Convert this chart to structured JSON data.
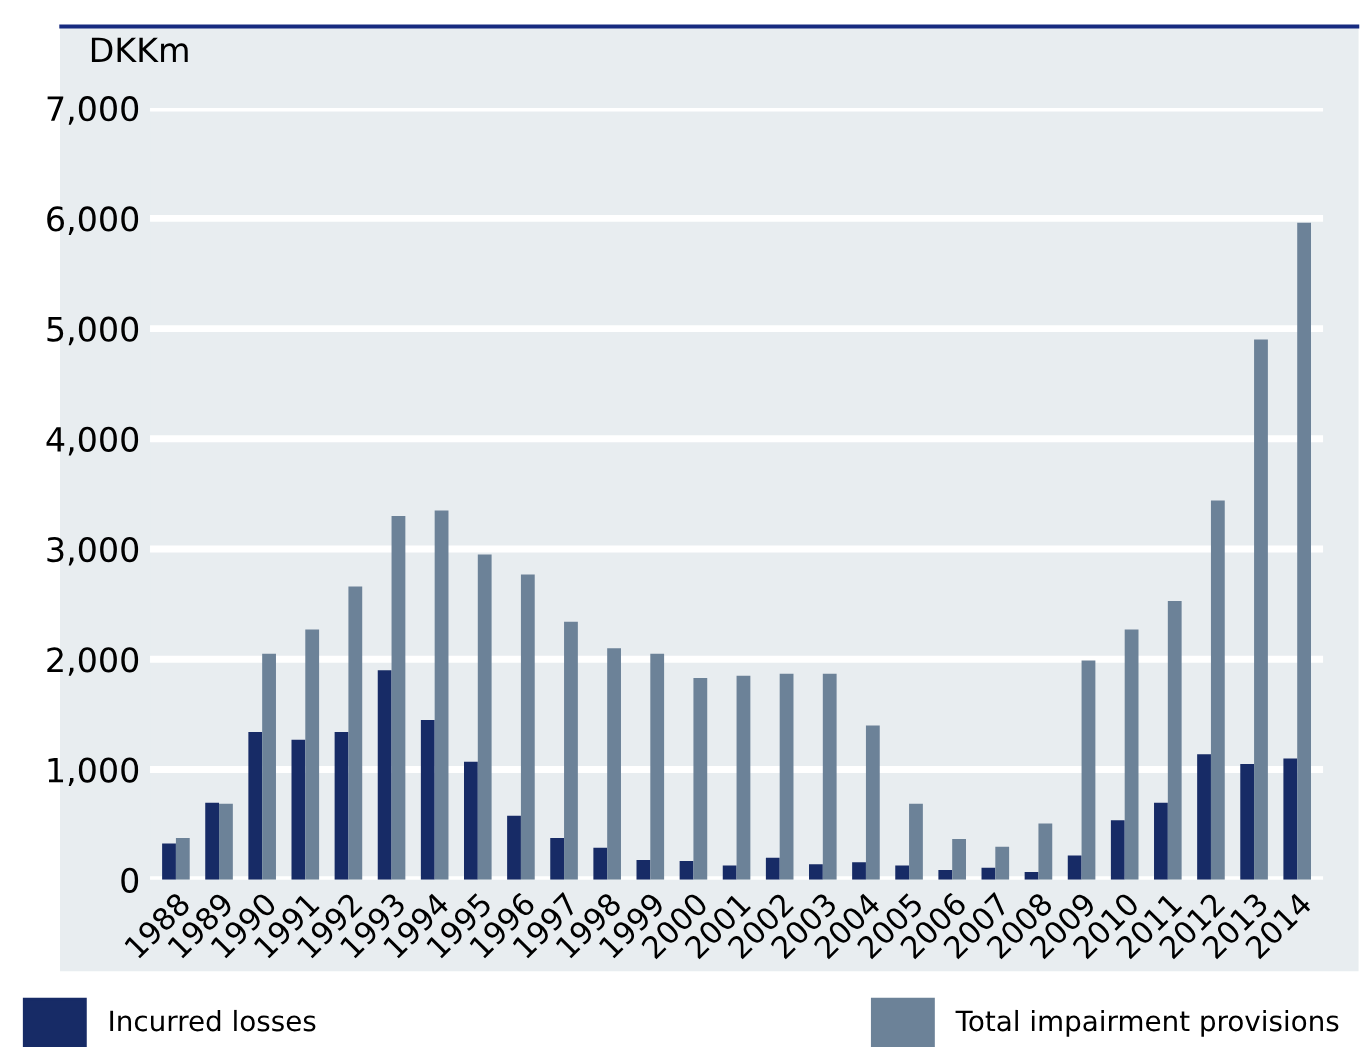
{
  "chart_data": {
    "type": "bar",
    "ylabel": "DKKm",
    "categories": [
      "1988",
      "1989",
      "1990",
      "1991",
      "1992",
      "1993",
      "1994",
      "1995",
      "1996",
      "1997",
      "1998",
      "1999",
      "2000",
      "2001",
      "2002",
      "2003",
      "2004",
      "2005",
      "2006",
      "2007",
      "2008",
      "2009",
      "2010",
      "2011",
      "2012",
      "2013",
      "2014"
    ],
    "series": [
      {
        "name": "Incurred losses",
        "color": "#172b66",
        "values": [
          330,
          700,
          1340,
          1270,
          1340,
          1900,
          1450,
          1070,
          580,
          380,
          290,
          180,
          170,
          130,
          200,
          140,
          160,
          130,
          90,
          110,
          70,
          220,
          540,
          700,
          1140,
          1050,
          1100
        ]
      },
      {
        "name": "Total impairment provisions",
        "color": "#6c8298",
        "values": [
          380,
          690,
          2050,
          2270,
          2660,
          3300,
          3350,
          2950,
          2770,
          2340,
          2100,
          2050,
          1830,
          1850,
          1870,
          1870,
          1400,
          690,
          370,
          300,
          510,
          1990,
          2270,
          2530,
          3440,
          4900,
          5960
        ]
      }
    ],
    "ylim": [
      0,
      7000
    ],
    "yticks": [
      {
        "value": 0,
        "label": "0"
      },
      {
        "value": 1000,
        "label": "1,000"
      },
      {
        "value": 2000,
        "label": "2,000"
      },
      {
        "value": 3000,
        "label": "3,000"
      },
      {
        "value": 4000,
        "label": "4,000"
      },
      {
        "value": 5000,
        "label": "5,000"
      },
      {
        "value": 6000,
        "label": "6,000"
      },
      {
        "value": 7000,
        "label": "7,000"
      }
    ],
    "grid": "y",
    "legend": "bottom"
  }
}
